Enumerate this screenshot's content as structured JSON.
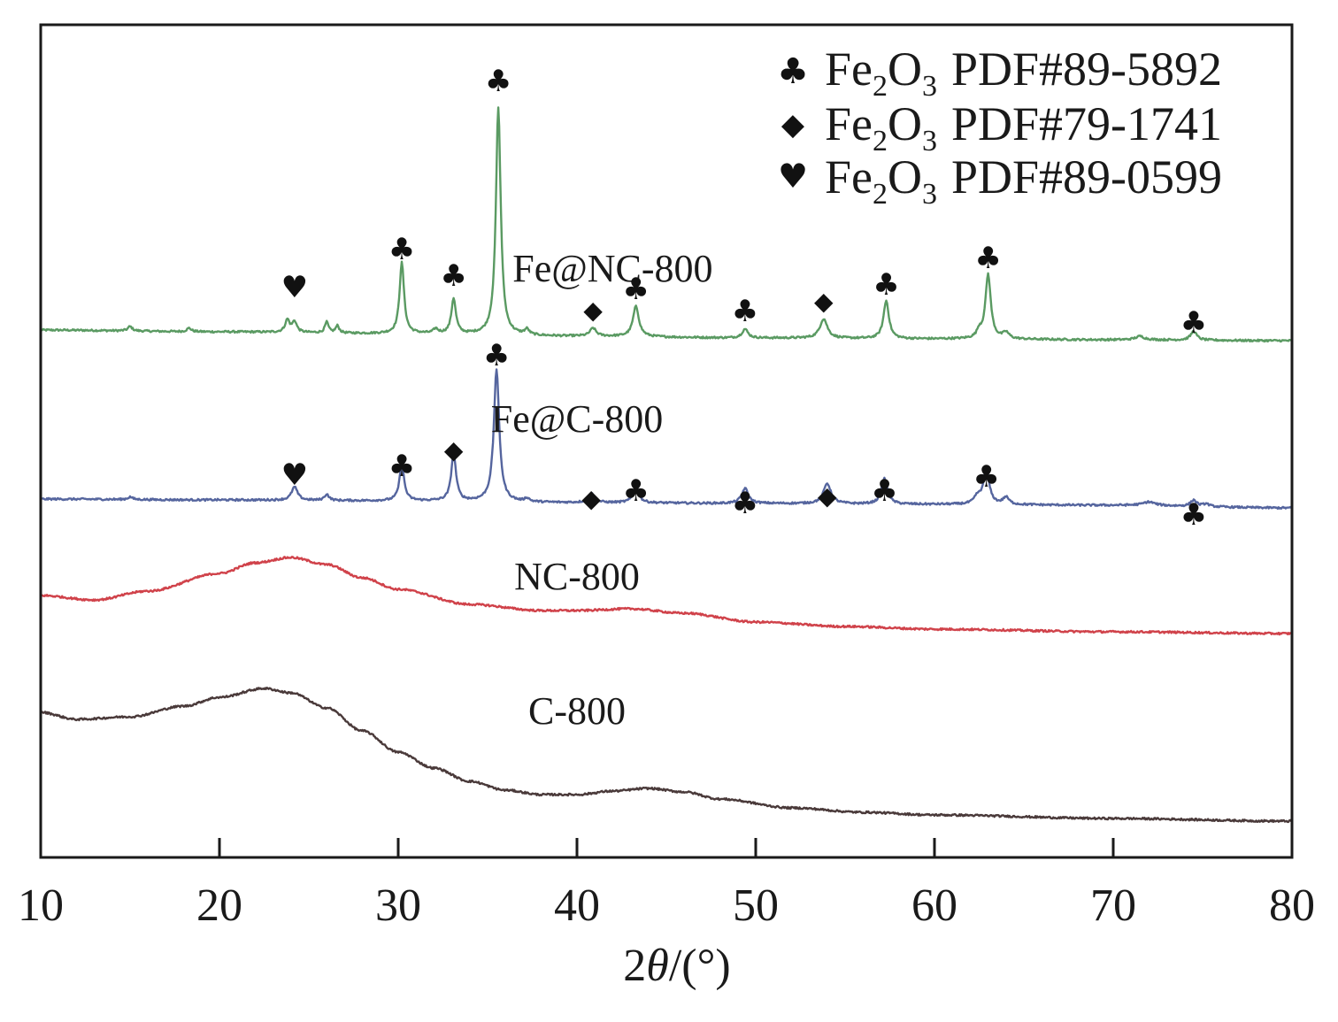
{
  "chart_data": {
    "type": "line",
    "title": "",
    "xlabel": "2θ/(°)",
    "xlabel_parts": {
      "prefix": "2",
      "theta": "θ",
      "suffix": "/(°)"
    },
    "ylabel": "",
    "xlim": [
      10,
      80
    ],
    "xticks": [
      10,
      20,
      30,
      40,
      50,
      60,
      70,
      80
    ],
    "y_axis_ticks": false,
    "grid": false,
    "legend": {
      "placement": "top-right",
      "entries": [
        {
          "symbol": "♣",
          "symbol_name": "club",
          "phase": "Fe",
          "sub1": "2",
          "mid": "O",
          "sub2": "3",
          "ref": "PDF#89-5892"
        },
        {
          "symbol": "◆",
          "symbol_name": "diamond",
          "phase": "Fe",
          "sub1": "2",
          "mid": "O",
          "sub2": "3",
          "ref": "PDF#79-1741"
        },
        {
          "symbol": "♥",
          "symbol_name": "heart",
          "phase": "Fe",
          "sub1": "2",
          "mid": "O",
          "sub2": "3",
          "ref": "PDF#89-0599"
        }
      ]
    },
    "series": [
      {
        "name": "Fe@NC-800",
        "color": "#5a9a62",
        "offset": 565,
        "baseline": [
          [
            10,
            10
          ],
          [
            20,
            8
          ],
          [
            30,
            6
          ],
          [
            40,
            3
          ],
          [
            50,
            1
          ],
          [
            60,
            0
          ],
          [
            70,
            -1
          ],
          [
            80,
            -2
          ]
        ],
        "peaks": [
          {
            "x": 15.0,
            "h": 5,
            "w": 0.15
          },
          {
            "x": 18.3,
            "h": 4,
            "w": 0.15
          },
          {
            "x": 23.8,
            "h": 14,
            "w": 0.15
          },
          {
            "x": 24.2,
            "h": 12,
            "w": 0.15
          },
          {
            "x": 26.0,
            "h": 12,
            "w": 0.12
          },
          {
            "x": 26.6,
            "h": 8,
            "w": 0.12
          },
          {
            "x": 30.2,
            "h": 80,
            "w": 0.15
          },
          {
            "x": 32.1,
            "h": 5,
            "w": 0.15
          },
          {
            "x": 33.1,
            "h": 40,
            "w": 0.15
          },
          {
            "x": 35.6,
            "h": 258,
            "w": 0.16
          },
          {
            "x": 37.2,
            "h": 6,
            "w": 0.15
          },
          {
            "x": 40.9,
            "h": 9,
            "w": 0.2
          },
          {
            "x": 43.3,
            "h": 34,
            "w": 0.2
          },
          {
            "x": 49.4,
            "h": 10,
            "w": 0.2
          },
          {
            "x": 53.8,
            "h": 22,
            "w": 0.25
          },
          {
            "x": 57.3,
            "h": 43,
            "w": 0.18
          },
          {
            "x": 62.5,
            "h": 8,
            "w": 0.15
          },
          {
            "x": 63.0,
            "h": 73,
            "w": 0.18
          },
          {
            "x": 64.0,
            "h": 7,
            "w": 0.2
          },
          {
            "x": 71.5,
            "h": 4,
            "w": 0.3
          },
          {
            "x": 74.5,
            "h": 10,
            "w": 0.2
          }
        ],
        "label": "Fe@NC-800",
        "label_pos": [
          42,
          630
        ]
      },
      {
        "name": "Fe@C-800",
        "color": "#55659e",
        "offset": 377,
        "baseline": [
          [
            10,
            7
          ],
          [
            20,
            6
          ],
          [
            30,
            5
          ],
          [
            40,
            3
          ],
          [
            50,
            2
          ],
          [
            60,
            1
          ],
          [
            70,
            0
          ],
          [
            80,
            -3
          ]
        ],
        "peaks": [
          {
            "x": 15.0,
            "h": 3,
            "w": 0.15
          },
          {
            "x": 24.2,
            "h": 15,
            "w": 0.2
          },
          {
            "x": 26.0,
            "h": 7,
            "w": 0.15
          },
          {
            "x": 30.2,
            "h": 40,
            "w": 0.16
          },
          {
            "x": 33.1,
            "h": 54,
            "w": 0.16
          },
          {
            "x": 35.5,
            "h": 150,
            "w": 0.18
          },
          {
            "x": 37.2,
            "h": 4,
            "w": 0.15
          },
          {
            "x": 40.8,
            "h": 10,
            "w": 0.2
          },
          {
            "x": 43.3,
            "h": 17,
            "w": 0.2
          },
          {
            "x": 49.4,
            "h": 17,
            "w": 0.22
          },
          {
            "x": 54.0,
            "h": 23,
            "w": 0.25
          },
          {
            "x": 57.2,
            "h": 29,
            "w": 0.2
          },
          {
            "x": 62.4,
            "h": 8,
            "w": 0.2
          },
          {
            "x": 62.9,
            "h": 39,
            "w": 0.2
          },
          {
            "x": 64.0,
            "h": 8,
            "w": 0.2
          },
          {
            "x": 72.0,
            "h": 4,
            "w": 0.4
          },
          {
            "x": 74.5,
            "h": 7,
            "w": 0.2
          },
          {
            "x": 75.2,
            "h": 3,
            "w": 0.2
          }
        ],
        "label": "Fe@C-800",
        "label_pos": [
          40,
          460
        ]
      },
      {
        "name": "NC-800",
        "color": "#d0424a",
        "offset": 200,
        "baseline": [
          [
            10,
            75
          ],
          [
            13,
            70
          ],
          [
            16,
            80
          ],
          [
            20,
            100
          ],
          [
            22,
            112
          ],
          [
            24,
            118
          ],
          [
            26,
            110
          ],
          [
            28,
            95
          ],
          [
            30,
            82
          ],
          [
            34,
            65
          ],
          [
            38,
            58
          ],
          [
            40,
            58
          ],
          [
            43,
            60
          ],
          [
            46,
            55
          ],
          [
            50,
            45
          ],
          [
            55,
            40
          ],
          [
            60,
            37
          ],
          [
            70,
            34
          ],
          [
            80,
            32
          ]
        ],
        "peaks": [],
        "label": "NC-800",
        "label_pos": [
          40,
          282
        ]
      },
      {
        "name": "C-800",
        "color": "#4a3a3a",
        "offset": 0,
        "baseline": [
          [
            10,
            143
          ],
          [
            12,
            135
          ],
          [
            15,
            138
          ],
          [
            18,
            150
          ],
          [
            20,
            160
          ],
          [
            22.5,
            170
          ],
          [
            24,
            165
          ],
          [
            26,
            148
          ],
          [
            28,
            122
          ],
          [
            30,
            98
          ],
          [
            32,
            80
          ],
          [
            34,
            65
          ],
          [
            36,
            55
          ],
          [
            38,
            50
          ],
          [
            40,
            50
          ],
          [
            42,
            54
          ],
          [
            44,
            57
          ],
          [
            46,
            53
          ],
          [
            48,
            45
          ],
          [
            52,
            35
          ],
          [
            56,
            30
          ],
          [
            60,
            27
          ],
          [
            70,
            23
          ],
          [
            80,
            20
          ]
        ],
        "peaks": [],
        "label": "C-800",
        "label_pos": [
          40,
          130
        ]
      }
    ],
    "peak_markers": [
      {
        "series": "Fe@NC-800",
        "x": 24.2,
        "symbol": "♥",
        "y": 612
      },
      {
        "series": "Fe@NC-800",
        "x": 30.2,
        "symbol": "♣",
        "y": 655
      },
      {
        "series": "Fe@NC-800",
        "x": 33.1,
        "symbol": "♣",
        "y": 625
      },
      {
        "series": "Fe@NC-800",
        "x": 35.6,
        "symbol": "♣",
        "y": 845
      },
      {
        "series": "Fe@NC-800",
        "x": 40.9,
        "symbol": "◆",
        "y": 588
      },
      {
        "series": "Fe@NC-800",
        "x": 43.3,
        "symbol": "♣",
        "y": 610
      },
      {
        "series": "Fe@NC-800",
        "x": 49.4,
        "symbol": "♣",
        "y": 585
      },
      {
        "series": "Fe@NC-800",
        "x": 53.8,
        "symbol": "◆",
        "y": 598
      },
      {
        "series": "Fe@NC-800",
        "x": 57.3,
        "symbol": "♣",
        "y": 615
      },
      {
        "series": "Fe@NC-800",
        "x": 63.0,
        "symbol": "♣",
        "y": 645
      },
      {
        "series": "Fe@NC-800",
        "x": 74.5,
        "symbol": "♣",
        "y": 572
      },
      {
        "series": "Fe@C-800",
        "x": 24.2,
        "symbol": "♥",
        "y": 400
      },
      {
        "series": "Fe@C-800",
        "x": 30.2,
        "symbol": "♣",
        "y": 410
      },
      {
        "series": "Fe@C-800",
        "x": 33.1,
        "symbol": "◆",
        "y": 430
      },
      {
        "series": "Fe@C-800",
        "x": 35.5,
        "symbol": "♣",
        "y": 535
      },
      {
        "series": "Fe@C-800",
        "x": 40.8,
        "symbol": "◆",
        "y": 375
      },
      {
        "series": "Fe@C-800",
        "x": 43.3,
        "symbol": "♣",
        "y": 382
      },
      {
        "series": "Fe@C-800",
        "x": 49.4,
        "symbol": "♣",
        "y": 368
      },
      {
        "series": "Fe@C-800",
        "x": 54.0,
        "symbol": "◆",
        "y": 378
      },
      {
        "series": "Fe@C-800",
        "x": 57.2,
        "symbol": "♣",
        "y": 382
      },
      {
        "series": "Fe@C-800",
        "x": 62.9,
        "symbol": "♣",
        "y": 398
      },
      {
        "series": "Fe@C-800",
        "x": 74.5,
        "symbol": "♣",
        "y": 355
      }
    ]
  }
}
